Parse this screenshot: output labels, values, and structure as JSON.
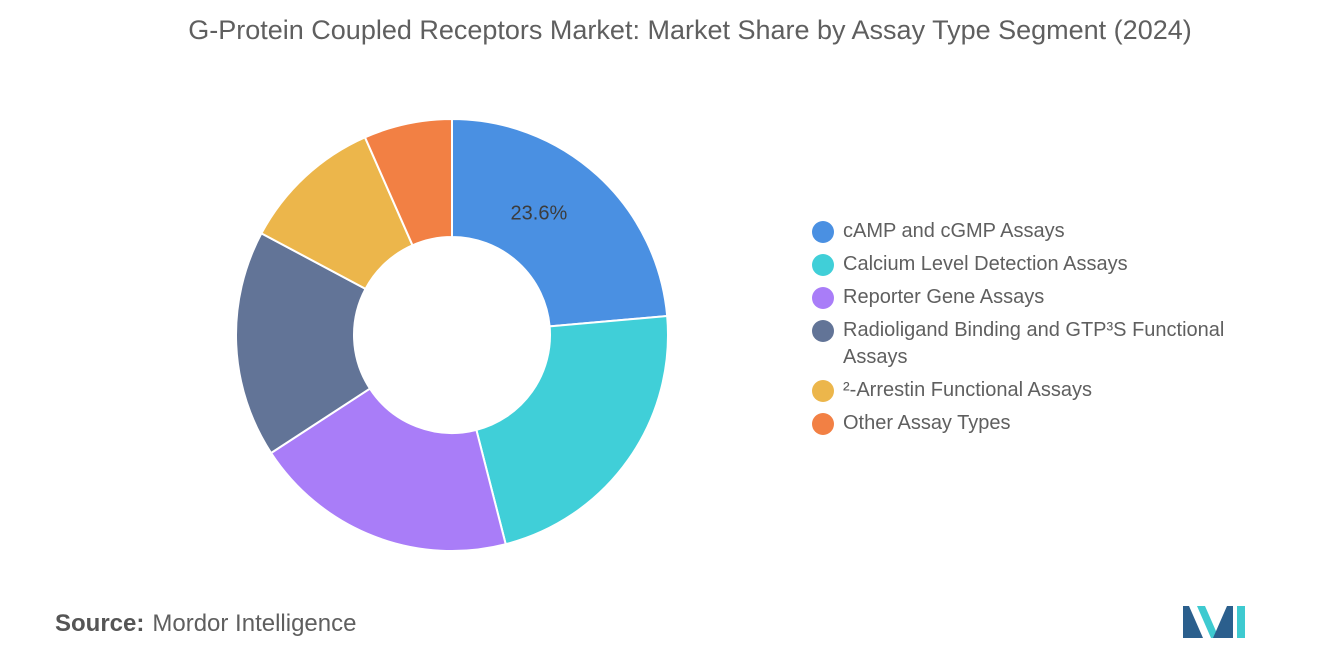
{
  "title": "G-Protein Coupled Receptors Market: Market Share by Assay Type Segment (2024)",
  "chart_data": {
    "type": "pie",
    "style": "donut",
    "categories": [
      "cAMP and cGMP Assays",
      "Calcium Level Detection Assays",
      "Reporter Gene Assays",
      "Radioligand Binding and GTP³S Functional Assays",
      "²-Arrestin Functional Assays",
      "Other Assay Types"
    ],
    "values": [
      23.6,
      22.4,
      19.8,
      17.0,
      10.6,
      6.6
    ],
    "colors": [
      "#4A90E2",
      "#40CFD8",
      "#A97DF8",
      "#627497",
      "#ECB64B",
      "#F28044"
    ],
    "data_labels": [
      "23.6%",
      "",
      "",
      "",
      "",
      ""
    ],
    "legend_position": "right"
  },
  "source": {
    "label": "Source:",
    "text": "Mordor Intelligence"
  },
  "logo": {
    "colors": [
      "#2B5F8D",
      "#3ECAD0"
    ]
  }
}
